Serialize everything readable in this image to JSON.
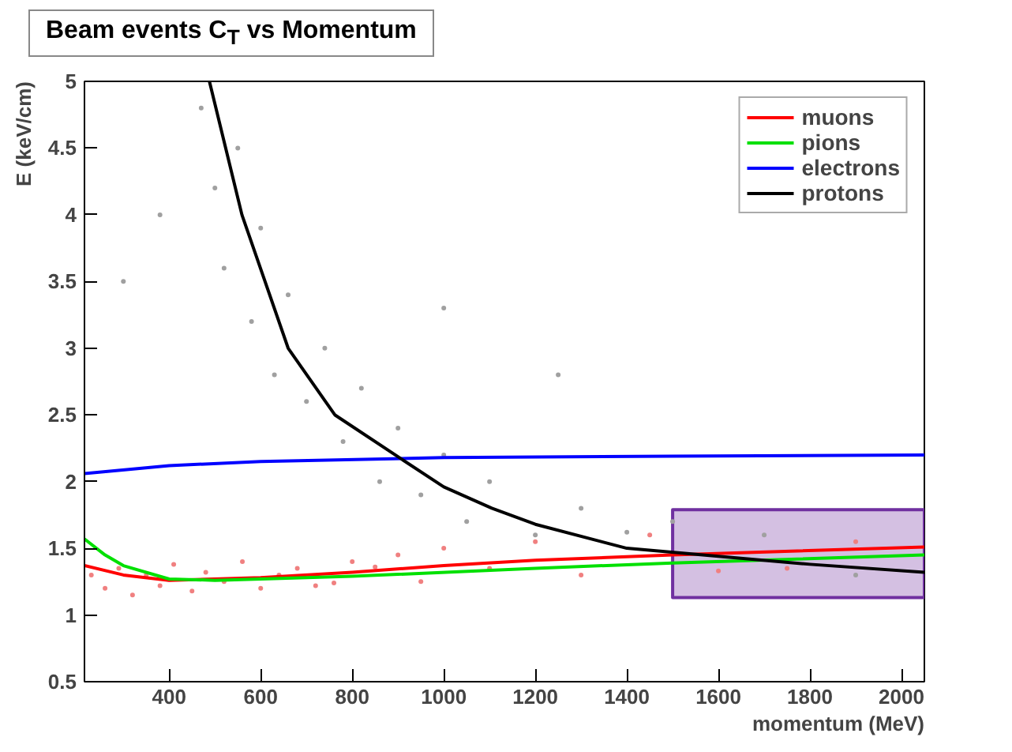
{
  "chart_data": {
    "type": "line",
    "title": "Beam events C$_{T}$ vs Momentum",
    "xlabel": "momentum (MeV)",
    "ylabel": "E (keV/cm)",
    "xlim": [
      215,
      2050
    ],
    "ylim": [
      0.5,
      5
    ],
    "xticks": [
      400,
      600,
      800,
      1000,
      1200,
      1400,
      1600,
      1800,
      2000
    ],
    "yticks": [
      0.5,
      1,
      1.5,
      2,
      2.5,
      3,
      3.5,
      4,
      4.5,
      5
    ],
    "grid": false,
    "legend": "top right",
    "marker": "none",
    "line_style": "solid",
    "series": [
      {
        "type": "scatter",
        "color": "#f08080",
        "x": [
          230,
          260,
          290,
          320,
          350,
          380,
          410,
          450,
          480,
          520,
          560,
          600,
          640,
          680,
          720,
          760,
          800,
          850,
          900,
          950,
          1000,
          1100,
          1200,
          1300,
          1450,
          1600,
          1750,
          1900
        ],
        "values": [
          1.3,
          1.2,
          1.35,
          1.15,
          1.3,
          1.22,
          1.38,
          1.18,
          1.32,
          1.25,
          1.4,
          1.2,
          1.3,
          1.35,
          1.22,
          1.24,
          1.4,
          1.36,
          1.45,
          1.25,
          1.5,
          1.35,
          1.55,
          1.3,
          1.6,
          1.33,
          1.35,
          1.55
        ]
      },
      {
        "type": "scatter",
        "color": "#a0a0a0",
        "x": [
          470,
          500,
          520,
          550,
          580,
          600,
          630,
          660,
          700,
          740,
          780,
          820,
          860,
          900,
          950,
          1000,
          1050,
          1100,
          1200,
          1300,
          1400,
          1500,
          1700,
          1900,
          300,
          380,
          1000,
          1250
        ],
        "values": [
          4.8,
          4.2,
          3.6,
          4.5,
          3.2,
          3.9,
          2.8,
          3.4,
          2.6,
          3.0,
          2.3,
          2.7,
          2.0,
          2.4,
          1.9,
          2.2,
          1.7,
          2.0,
          1.6,
          1.8,
          1.62,
          1.7,
          1.6,
          1.3,
          3.5,
          4.0,
          3.3,
          2.8
        ]
      },
      {
        "name": "muons",
        "color": "#ff0000",
        "x": [
          215,
          300,
          400,
          600,
          800,
          1000,
          1200,
          1500,
          2050
        ],
        "values": [
          1.37,
          1.3,
          1.26,
          1.28,
          1.32,
          1.37,
          1.41,
          1.45,
          1.51
        ]
      },
      {
        "name": "pions",
        "color": "#00e000",
        "x": [
          215,
          260,
          300,
          400,
          500,
          800,
          1200,
          1500,
          2050
        ],
        "values": [
          1.57,
          1.45,
          1.37,
          1.27,
          1.26,
          1.29,
          1.35,
          1.39,
          1.45
        ]
      },
      {
        "name": "electrons",
        "color": "#0000ff",
        "x": [
          215,
          400,
          600,
          1000,
          1500,
          2050
        ],
        "values": [
          2.06,
          2.12,
          2.15,
          2.18,
          2.19,
          2.2
        ]
      },
      {
        "name": "protons",
        "color": "#000000",
        "x": [
          488,
          559,
          660,
          762,
          907,
          1000,
          1105,
          1200,
          1400,
          1600,
          1800,
          2050
        ],
        "values": [
          5,
          4,
          3,
          2.5,
          2.17,
          1.96,
          1.8,
          1.68,
          1.5,
          1.44,
          1.38,
          1.32
        ]
      },
      {
        "type": "area",
        "color": "#7030a0",
        "x": [
          1500,
          1500,
          2050,
          2050,
          1500
        ],
        "values": [
          1.13,
          1.79,
          1.79,
          1.13,
          1.13
        ]
      }
    ]
  }
}
